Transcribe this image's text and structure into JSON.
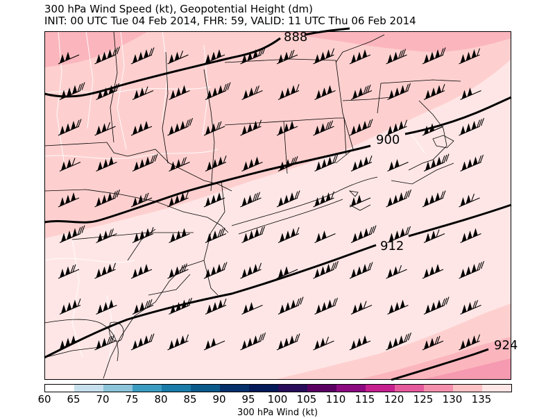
{
  "title": {
    "line1": "300 hPa Wind Speed (kt), Geopotential Height (dm)",
    "line2": "INIT: 00 UTC Tue 04 Feb 2014, FHR: 59, VALID: 11 UTC Thu 06 Feb 2014"
  },
  "colorbar": {
    "label": "300 hPa Wind (kt)",
    "ticks": [
      "60",
      "65",
      "70",
      "75",
      "80",
      "85",
      "90",
      "95",
      "100",
      "105",
      "110",
      "115",
      "120",
      "125",
      "130",
      "135"
    ],
    "colors": [
      "#ffffff",
      "#c7e0ee",
      "#8cc4d9",
      "#3b9cc2",
      "#1a7ca8",
      "#0b5a8c",
      "#06306a",
      "#041b5a",
      "#280d5a",
      "#5a0062",
      "#8c0a80",
      "#c4208f",
      "#e45a9c",
      "#f490ad",
      "#fbc1c4",
      "#ffe6e6"
    ]
  },
  "contour_labels": [
    "888",
    "900",
    "912",
    "924"
  ],
  "wind_shading": [
    {
      "speed_kt": 135,
      "color": "#ffe6e6"
    },
    {
      "speed_kt": 130,
      "color": "#fdd0cf"
    },
    {
      "speed_kt": 125,
      "color": "#fbb6bd"
    },
    {
      "speed_kt": 120,
      "color": "#f59ab0"
    }
  ],
  "map": {
    "boundary_color": "#000000",
    "contour_color": "#000000",
    "barb_color": "#000000"
  }
}
